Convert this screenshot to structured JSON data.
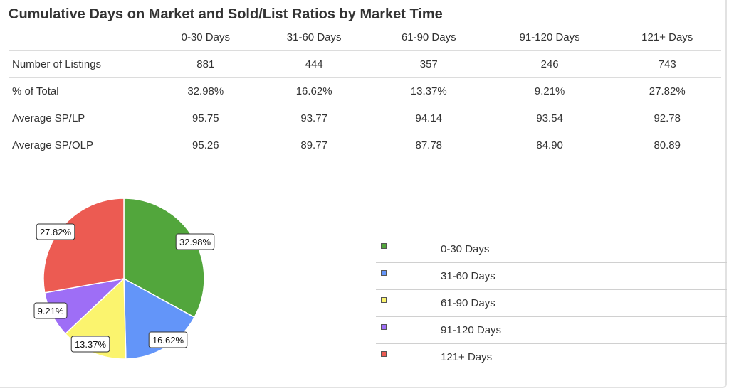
{
  "title": "Cumulative Days on Market and Sold/List Ratios by Market Time",
  "table": {
    "columns": [
      "0-30 Days",
      "31-60 Days",
      "61-90 Days",
      "91-120 Days",
      "121+ Days"
    ],
    "rows": [
      {
        "label": "Number of Listings",
        "values": [
          "881",
          "444",
          "357",
          "246",
          "743"
        ]
      },
      {
        "label": "% of Total",
        "values": [
          "32.98%",
          "16.62%",
          "13.37%",
          "9.21%",
          "27.82%"
        ]
      },
      {
        "label": "Average SP/LP",
        "values": [
          "95.75",
          "93.77",
          "94.14",
          "93.54",
          "92.78"
        ]
      },
      {
        "label": "Average SP/OLP",
        "values": [
          "95.26",
          "89.77",
          "87.78",
          "84.90",
          "80.89"
        ]
      }
    ]
  },
  "chart_data": {
    "type": "pie",
    "categories": [
      "0-30 Days",
      "31-60 Days",
      "61-90 Days",
      "91-120 Days",
      "121+ Days"
    ],
    "values": [
      32.98,
      16.62,
      13.37,
      9.21,
      27.82
    ],
    "data_labels": [
      "32.98%",
      "16.62%",
      "13.37%",
      "9.21%",
      "27.82%"
    ],
    "colors": [
      "#52a63c",
      "#6395f9",
      "#fbf46e",
      "#9e6ef6",
      "#ec5b52"
    ],
    "legend": [
      "0-30 Days",
      "31-60 Days",
      "61-90 Days",
      "91-120 Days",
      "121+ Days"
    ],
    "legend_placement": "right"
  }
}
